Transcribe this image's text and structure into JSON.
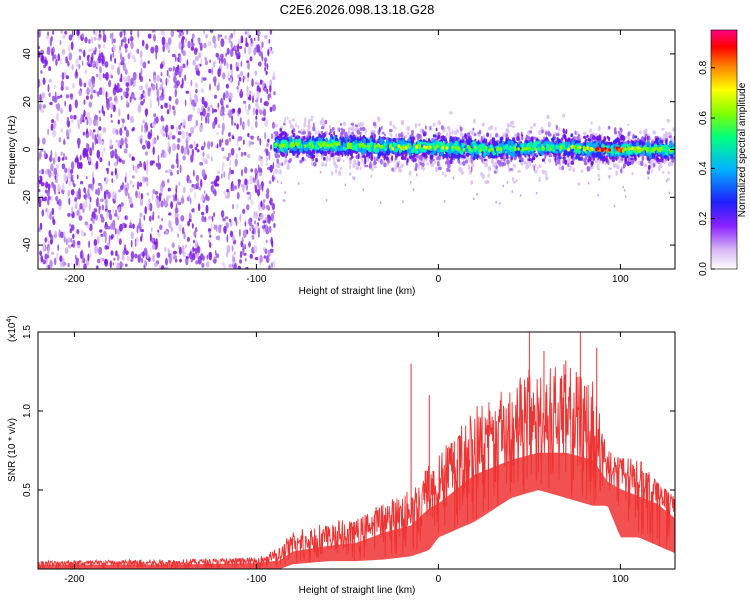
{
  "chart_data": [
    {
      "type": "heatmap",
      "title": "C2E6.2026.098.13.18.G28",
      "xlabel": "Height of straight line (km)",
      "ylabel": "Frequency (Hz)",
      "xlim": [
        -220,
        130
      ],
      "ylim": [
        -50,
        50
      ],
      "xticks": [
        -200,
        -100,
        0,
        100
      ],
      "xtick_labels": [
        "-200",
        "-100",
        "0",
        "100"
      ],
      "yticks": [
        -40,
        -20,
        0,
        20,
        40
      ],
      "ytick_labels": [
        "-40",
        "-20",
        "0",
        "20",
        "40"
      ],
      "noise_region_km": [
        -220,
        -90
      ],
      "signal_band": {
        "x_start_km": -90,
        "center_freq_hz": [
          [
            -90,
            2
          ],
          [
            -60,
            2
          ],
          [
            -30,
            1
          ],
          [
            0,
            1
          ],
          [
            30,
            0
          ],
          [
            60,
            1
          ],
          [
            90,
            0
          ],
          [
            130,
            0
          ]
        ],
        "peak_amplitude_km": [
          [
            -90,
            0.5
          ],
          [
            -50,
            0.55
          ],
          [
            -5,
            0.75
          ],
          [
            20,
            0.5
          ],
          [
            60,
            0.55
          ],
          [
            95,
            0.95
          ],
          [
            130,
            0.4
          ]
        ]
      },
      "colorbar": {
        "label": "Normalized spectral amplitude",
        "range": [
          0.0,
          0.95
        ],
        "ticks": [
          0.0,
          0.2,
          0.4,
          0.6,
          0.8
        ],
        "tick_labels": [
          "0.0",
          "0.2",
          "0.4",
          "0.6",
          "0.8"
        ],
        "colors": [
          "#ffffff",
          "#c8a0f0",
          "#8000ff",
          "#0000ff",
          "#00c8ff",
          "#00ff80",
          "#80ff00",
          "#ffff00",
          "#ff8000",
          "#ff0000",
          "#ff0080"
        ]
      }
    },
    {
      "type": "line",
      "xlabel": "Height of straight line (km)",
      "ylabel": "SNR (10 * v/v)",
      "scale_label": "(x10",
      "scale_exponent": "4",
      "scale_suffix": ")",
      "xlim": [
        -220,
        130
      ],
      "ylim": [
        0,
        1.5
      ],
      "xticks": [
        -200,
        -100,
        0,
        100
      ],
      "xtick_labels": [
        "-200",
        "-100",
        "0",
        "100"
      ],
      "yticks": [
        0.5,
        1.0,
        1.5
      ],
      "ytick_labels": [
        "0.5",
        "1.0",
        "1.5"
      ],
      "series": [
        {
          "name": "SNR",
          "color": "#ee3333",
          "envelope_x": [
            -220,
            -150,
            -100,
            -87,
            -80,
            -60,
            -45,
            -30,
            -15,
            -5,
            0,
            10,
            20,
            40,
            55,
            70,
            85,
            93,
            100,
            110,
            120,
            130
          ],
          "envelope_low": [
            0.0,
            0.0,
            0.0,
            0.0,
            0.03,
            0.05,
            0.05,
            0.06,
            0.08,
            0.12,
            0.2,
            0.25,
            0.3,
            0.45,
            0.5,
            0.45,
            0.4,
            0.4,
            0.2,
            0.2,
            0.15,
            0.1
          ],
          "envelope_mid": [
            0.03,
            0.03,
            0.04,
            0.06,
            0.12,
            0.16,
            0.18,
            0.25,
            0.3,
            0.42,
            0.45,
            0.55,
            0.65,
            0.75,
            0.8,
            0.8,
            0.75,
            0.6,
            0.55,
            0.5,
            0.45,
            0.35
          ],
          "envelope_high": [
            0.05,
            0.06,
            0.07,
            0.14,
            0.25,
            0.3,
            0.32,
            0.42,
            0.5,
            0.68,
            0.72,
            0.9,
            1.05,
            1.2,
            1.3,
            1.3,
            1.2,
            0.75,
            0.7,
            0.7,
            0.55,
            0.45
          ],
          "spikes": [
            [
              -15,
              1.3
            ],
            [
              -5,
              1.1
            ],
            [
              50,
              1.5
            ],
            [
              58,
              1.38
            ],
            [
              70,
              1.32
            ],
            [
              78,
              1.5
            ],
            [
              87,
              1.4
            ],
            [
              112,
              0.62
            ]
          ]
        }
      ]
    }
  ]
}
